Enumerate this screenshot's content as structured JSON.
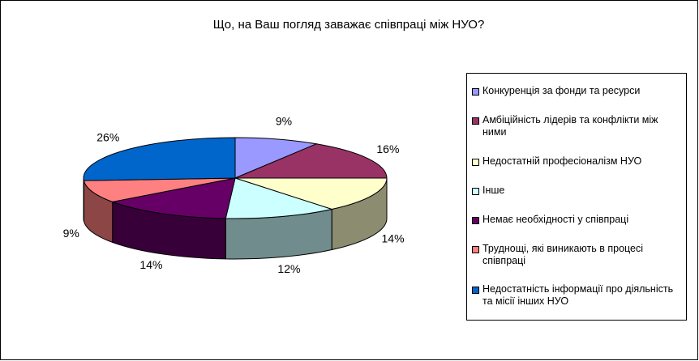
{
  "chart_data": {
    "type": "pie",
    "title": "Що, на Ваш погляд заважає співпраці між НУО?",
    "categories": [
      "Конкуренція за фонди та ресурси",
      "Амбіційність лідерів та конфлікти між ними",
      "Недостатній професіоналізм НУО",
      "Інше",
      "Немає необхідності у співпраці",
      "Труднощі, які виникають в процесі співпраці",
      "Недостатність інформації про діяльність та місії інших НУО"
    ],
    "values": [
      9,
      16,
      14,
      12,
      14,
      9,
      26
    ],
    "value_labels": [
      "9%",
      "16%",
      "14%",
      "12%",
      "14%",
      "9%",
      "26%"
    ],
    "colors": [
      "#9999ff",
      "#993366",
      "#ffffcc",
      "#ccffff",
      "#660066",
      "#ff8080",
      "#0066cc"
    ],
    "legend": "right"
  }
}
